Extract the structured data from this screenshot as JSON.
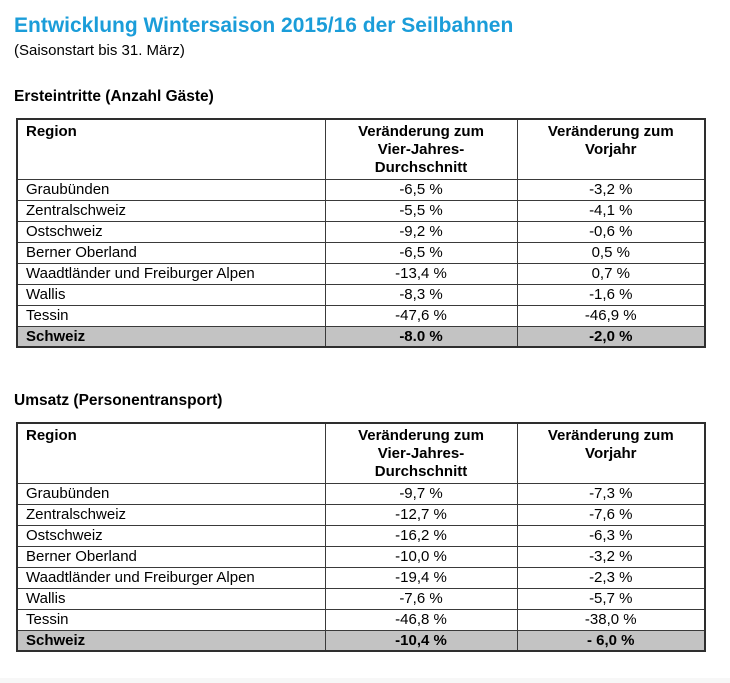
{
  "page": {
    "title": "Entwicklung Wintersaison 2015/16 der Seilbahnen",
    "subtitle": "(Saisonstart bis 31. März)"
  },
  "colors": {
    "accent_blue": "#1b9dd9",
    "total_row_background": "#c3c3c3",
    "table_border": "#3a3a3a"
  },
  "sections": [
    {
      "heading": "Ersteintritte (Anzahl Gäste)",
      "columns": [
        "Region",
        "Veränderung zum\nVier-Jahres-\nDurchschnitt",
        "Veränderung zum\nVorjahr"
      ],
      "rows": [
        [
          "Graubünden",
          "-6,5 %",
          "-3,2 %"
        ],
        [
          "Zentralschweiz",
          "-5,5 %",
          "-4,1 %"
        ],
        [
          "Ostschweiz",
          "-9,2 %",
          "-0,6 %"
        ],
        [
          "Berner Oberland",
          "-6,5 %",
          "0,5 %"
        ],
        [
          "Waadtländer und Freiburger Alpen",
          "-13,4 %",
          "0,7 %"
        ],
        [
          "Wallis",
          "-8,3 %",
          "-1,6 %"
        ],
        [
          "Tessin",
          "-47,6 %",
          "-46,9 %"
        ]
      ],
      "total_row": [
        "Schweiz",
        "-8.0 %",
        "-2,0 %"
      ]
    },
    {
      "heading": "Umsatz (Personentransport)",
      "columns": [
        "Region",
        "Veränderung zum\nVier-Jahres-\nDurchschnitt",
        "Veränderung zum\nVorjahr"
      ],
      "rows": [
        [
          "Graubünden",
          "-9,7 %",
          "-7,3 %"
        ],
        [
          "Zentralschweiz",
          "-12,7 %",
          "-7,6 %"
        ],
        [
          "Ostschweiz",
          "-16,2 %",
          "-6,3 %"
        ],
        [
          "Berner Oberland",
          "-10,0 %",
          "-3,2 %"
        ],
        [
          "Waadtländer und Freiburger Alpen",
          "-19,4 %",
          "-2,3 %"
        ],
        [
          "Wallis",
          "-7,6 %",
          "-5,7 %"
        ],
        [
          "Tessin",
          "-46,8 %",
          "-38,0 %"
        ]
      ],
      "total_row": [
        "Schweiz",
        "-10,4 %",
        "- 6,0 %"
      ]
    }
  ]
}
